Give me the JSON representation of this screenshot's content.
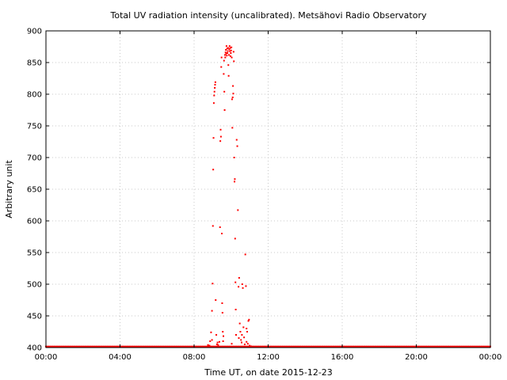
{
  "chart_data": {
    "type": "scatter",
    "title": "Total UV radiation intensity (uncalibrated). Metsähovi Radio Observatory",
    "xlabel": "Time UT, on date 2015-12-23",
    "ylabel": "Arbitrary unit",
    "xlim": [
      "00:00",
      "24:00"
    ],
    "ylim": [
      400,
      900
    ],
    "x_ticks": [
      "00:00",
      "04:00",
      "08:00",
      "12:00",
      "16:00",
      "20:00",
      "00:00"
    ],
    "y_ticks": [
      400,
      450,
      500,
      550,
      600,
      650,
      700,
      750,
      800,
      850,
      900
    ],
    "grid": true,
    "marker_color": "#ff0000",
    "series": [
      {
        "points": [
          [
            "08:55",
            424
          ],
          [
            "08:58",
            458
          ],
          [
            "09:00",
            501
          ],
          [
            "09:01",
            592
          ],
          [
            "09:02",
            681
          ],
          [
            "09:03",
            731
          ],
          [
            "09:04",
            786
          ],
          [
            "09:05",
            798
          ],
          [
            "09:06",
            804
          ],
          [
            "09:07",
            810
          ],
          [
            "09:08",
            815
          ],
          [
            "09:09",
            819
          ],
          [
            "09:10",
            475
          ],
          [
            "09:12",
            420
          ],
          [
            "09:14",
            405
          ],
          [
            "09:16",
            408
          ],
          [
            "09:18",
            404
          ],
          [
            "09:24",
            590
          ],
          [
            "09:25",
            726
          ],
          [
            "09:26",
            744
          ],
          [
            "09:27",
            733
          ],
          [
            "09:28",
            843
          ],
          [
            "09:29",
            858
          ],
          [
            "09:30",
            580
          ],
          [
            "09:31",
            470
          ],
          [
            "09:32",
            455
          ],
          [
            "09:33",
            425
          ],
          [
            "09:34",
            410
          ],
          [
            "09:36",
            832
          ],
          [
            "09:37",
            853
          ],
          [
            "09:38",
            804
          ],
          [
            "09:39",
            775
          ],
          [
            "09:40",
            862
          ],
          [
            "09:41",
            858
          ],
          [
            "09:42",
            866
          ],
          [
            "09:43",
            870
          ],
          [
            "09:44",
            864
          ],
          [
            "09:45",
            876
          ],
          [
            "09:46",
            861
          ],
          [
            "09:47",
            872
          ],
          [
            "09:48",
            865
          ],
          [
            "09:49",
            868
          ],
          [
            "09:50",
            873
          ],
          [
            "09:51",
            846
          ],
          [
            "09:52",
            829
          ],
          [
            "09:53",
            862
          ],
          [
            "09:54",
            871
          ],
          [
            "09:55",
            876
          ],
          [
            "09:56",
            868
          ],
          [
            "09:57",
            873
          ],
          [
            "09:58",
            860
          ],
          [
            "09:59",
            865
          ],
          [
            "10:00",
            869
          ],
          [
            "10:01",
            874
          ],
          [
            "10:02",
            858
          ],
          [
            "10:03",
            792
          ],
          [
            "10:04",
            747
          ],
          [
            "10:05",
            795
          ],
          [
            "10:06",
            813
          ],
          [
            "10:07",
            801
          ],
          [
            "10:08",
            867
          ],
          [
            "10:09",
            852
          ],
          [
            "10:10",
            700
          ],
          [
            "10:11",
            662
          ],
          [
            "10:12",
            666
          ],
          [
            "10:13",
            572
          ],
          [
            "10:14",
            503
          ],
          [
            "10:15",
            460
          ],
          [
            "10:16",
            420
          ],
          [
            "10:18",
            728
          ],
          [
            "10:20",
            718
          ],
          [
            "10:22",
            617
          ],
          [
            "10:24",
            496
          ],
          [
            "10:26",
            510
          ],
          [
            "10:28",
            438
          ],
          [
            "10:30",
            425
          ],
          [
            "10:32",
            412
          ],
          [
            "10:34",
            408
          ],
          [
            "10:36",
            500
          ],
          [
            "10:38",
            494
          ],
          [
            "10:40",
            432
          ],
          [
            "10:42",
            416
          ],
          [
            "10:44",
            405
          ],
          [
            "10:46",
            547
          ],
          [
            "10:48",
            497
          ],
          [
            "10:50",
            430
          ],
          [
            "10:52",
            425
          ],
          [
            "10:54",
            406
          ],
          [
            "10:56",
            442
          ],
          [
            "10:58",
            444
          ],
          [
            "11:00",
            403
          ],
          [
            "11:05",
            402
          ],
          [
            "08:45",
            404
          ],
          [
            "08:50",
            403
          ],
          [
            "08:52",
            410
          ],
          [
            "08:58",
            412
          ],
          [
            "09:22",
            409
          ],
          [
            "09:35",
            418
          ],
          [
            "10:02",
            406
          ],
          [
            "10:25",
            415
          ],
          [
            "10:35",
            420
          ],
          [
            "10:50",
            409
          ]
        ],
        "baseline": {
          "from": "00:00",
          "to": "24:00",
          "value": 401,
          "step_minutes": 4
        }
      }
    ]
  }
}
